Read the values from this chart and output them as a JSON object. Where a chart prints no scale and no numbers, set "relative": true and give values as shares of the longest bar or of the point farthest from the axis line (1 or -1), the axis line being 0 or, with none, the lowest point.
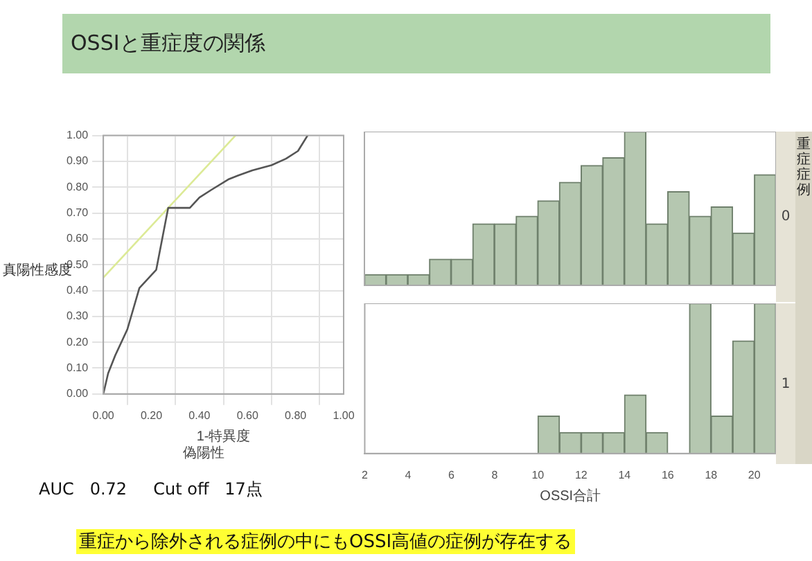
{
  "chart_data": [
    {
      "type": "line",
      "title": "OSSIと重症度の関係",
      "xlabel": "1-特異度",
      "ylabel": "真陽性感度",
      "xlim": [
        0,
        1
      ],
      "ylim": [
        0,
        1
      ],
      "xticks": [
        {
          "value": 0,
          "label": "0.00"
        },
        {
          "value": 0.2,
          "label": "0.20"
        },
        {
          "value": 0.4,
          "label": "0.40"
        },
        {
          "value": 0.6,
          "label": "0.60"
        },
        {
          "value": 0.8,
          "label": "0.80"
        },
        {
          "value": 1,
          "label": "1.00"
        }
      ],
      "yticks": [
        {
          "value": 0,
          "label": "0.00"
        },
        {
          "value": 0.1,
          "label": "0.10"
        },
        {
          "value": 0.2,
          "label": "0.20"
        },
        {
          "value": 0.3,
          "label": "0.30"
        },
        {
          "value": 0.4,
          "label": "0.40"
        },
        {
          "value": 0.5,
          "label": "0.50"
        },
        {
          "value": 0.6,
          "label": "0.60"
        },
        {
          "value": 0.7,
          "label": "0.70"
        },
        {
          "value": 0.8,
          "label": "0.80"
        },
        {
          "value": 0.9,
          "label": "0.90"
        },
        {
          "value": 1,
          "label": "1.00"
        }
      ],
      "grid": true,
      "marker": "none",
      "line_style": "solid",
      "series": [
        {
          "type": "line",
          "color": "#555555",
          "x": [
            0,
            0.02,
            0.05,
            0.1,
            0.15,
            0.2,
            0.22,
            0.27,
            0.36,
            0.4,
            0.45,
            0.52,
            0.56,
            0.62,
            0.7,
            0.76,
            0.81,
            0.85
          ],
          "values": [
            0,
            0.08,
            0.15,
            0.25,
            0.41,
            0.46,
            0.48,
            0.72,
            0.72,
            0.76,
            0.79,
            0.83,
            0.845,
            0.865,
            0.885,
            0.91,
            0.94,
            1
          ]
        },
        {
          "type": "line",
          "color": "#dcea96",
          "x": [
            0,
            0.55
          ],
          "values": [
            0.45,
            1
          ]
        }
      ],
      "annotations": [
        "偽陽性",
        "AUC   0.72     Cut off   17点",
        "重症から除外される症例の中にもOSSI高値の症例が存在する"
      ]
    },
    {
      "type": "bar",
      "relative": true,
      "y2label": "0",
      "annotations": [
        "重症症例"
      ],
      "xlim": [
        2,
        21
      ],
      "xticks": [
        2,
        4,
        6,
        8,
        10,
        12,
        14,
        16,
        18,
        20
      ],
      "tick_labels": false,
      "color": "#b5c7b0",
      "x": [
        2.5,
        3.5,
        4.5,
        5.5,
        6.5,
        7.5,
        8.5,
        9.5,
        10.5,
        11.5,
        12.5,
        13.5,
        14.5,
        15.5,
        16.5,
        17.5,
        18.5,
        19.5,
        20.5
      ],
      "values": [
        0.07,
        0.07,
        0.07,
        0.17,
        0.17,
        0.4,
        0.4,
        0.45,
        0.55,
        0.67,
        0.78,
        0.83,
        1,
        0.4,
        0.61,
        0.45,
        0.51,
        0.34,
        0.72
      ]
    },
    {
      "type": "bar",
      "relative": true,
      "y2label": "1",
      "xlabel": "OSSI合計",
      "xlim": [
        2,
        21
      ],
      "xticks": [
        2,
        4,
        6,
        8,
        10,
        12,
        14,
        16,
        18,
        20
      ],
      "tick_labels": "x",
      "color": "#b5c7b0",
      "x": [
        2.5,
        3.5,
        4.5,
        5.5,
        6.5,
        7.5,
        8.5,
        9.5,
        10.5,
        11.5,
        12.5,
        13.5,
        14.5,
        15.5,
        16.5,
        17.5,
        18.5,
        19.5,
        20.5
      ],
      "values": [
        0,
        0,
        0,
        0,
        0,
        0,
        0,
        0,
        0.25,
        0.14,
        0.14,
        0.14,
        0.39,
        0.14,
        0,
        1,
        0.25,
        0.75,
        1
      ]
    }
  ]
}
